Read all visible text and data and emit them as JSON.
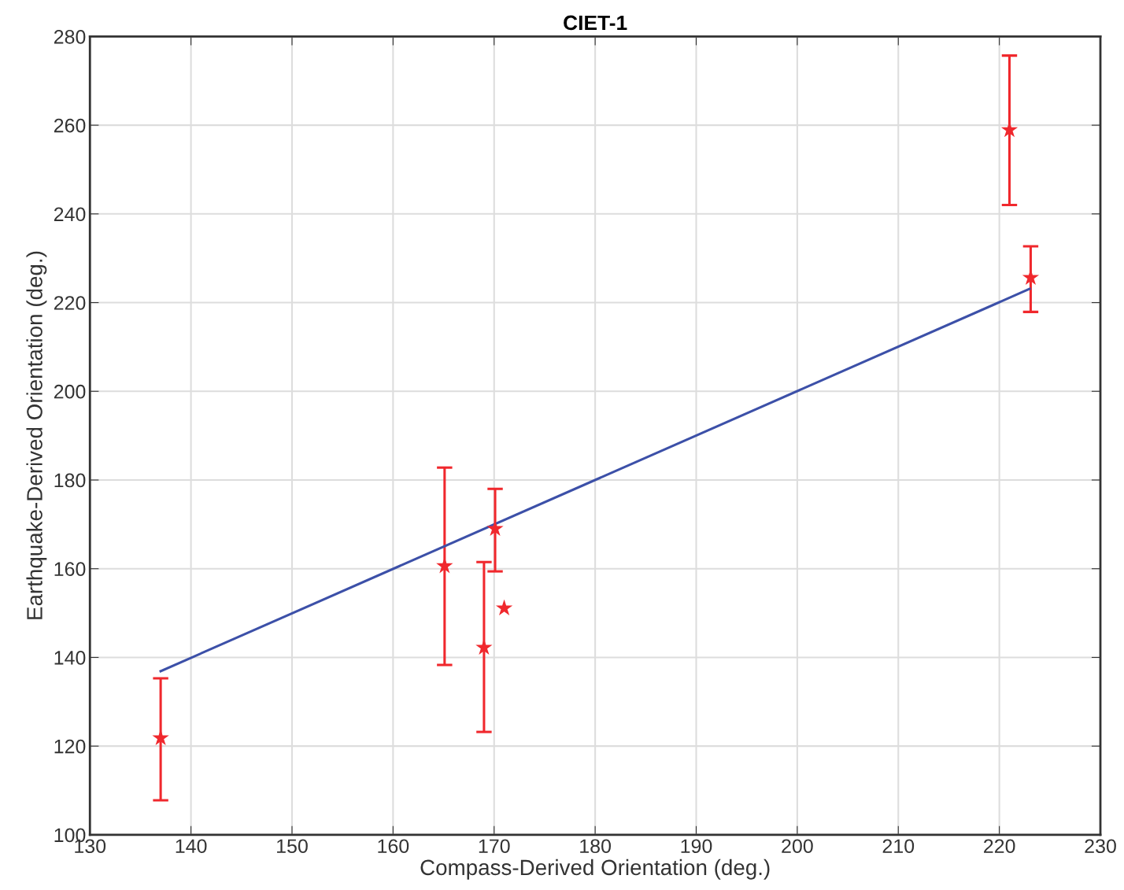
{
  "chart_data": {
    "type": "scatter",
    "title": "CIET-1",
    "xlabel": "Compass-Derived Orientation (deg.)",
    "ylabel": "Earthquake-Derived Orientation (deg.)",
    "xlim": [
      130,
      230
    ],
    "xticks": [
      130,
      140,
      150,
      160,
      170,
      180,
      190,
      200,
      210,
      220,
      230
    ],
    "ylim": [
      100,
      280
    ],
    "yticks": [
      100,
      120,
      140,
      160,
      180,
      200,
      220,
      240,
      260,
      280
    ],
    "grid": true,
    "legend": false,
    "series": [
      {
        "color": "#f0282d",
        "marker": "star",
        "x": [
          137,
          165.1,
          169,
          170.1,
          171,
          221,
          223.1
        ],
        "values": [
          121.8,
          160.6,
          142.2,
          169.0,
          151.1,
          258.9,
          225.6
        ],
        "errors": [
          [
            107.8,
            135.3
          ],
          [
            138.3,
            182.8
          ],
          [
            123.2,
            161.5
          ],
          [
            159.4,
            178.0
          ],
          null,
          [
            242.0,
            275.7
          ],
          [
            217.9,
            232.7
          ]
        ]
      },
      {
        "type": "line",
        "color": "#3c50a8",
        "marker": "none",
        "line_style": "solid",
        "x": [
          137,
          223
        ],
        "values": [
          136.9,
          223.1
        ]
      }
    ]
  }
}
